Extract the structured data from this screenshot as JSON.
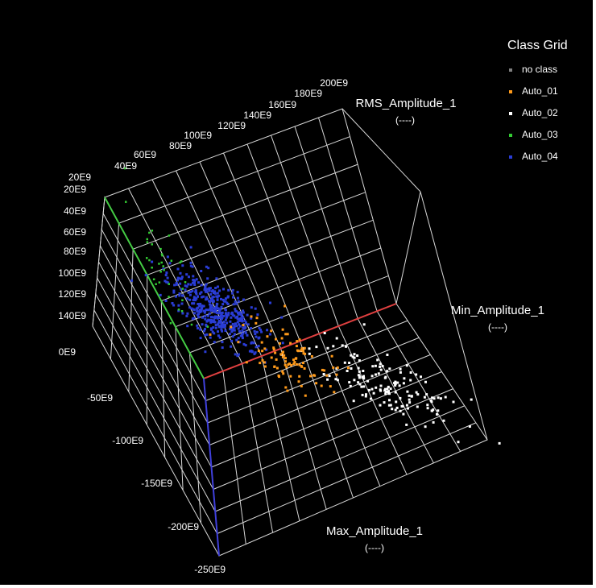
{
  "chart_data": {
    "type": "scatter",
    "title": "",
    "axes": {
      "rms": {
        "label": "RMS_Amplitude_1",
        "unit": "(----)",
        "ticks": [
          "20E9",
          "40E9",
          "60E9",
          "80E9",
          "100E9",
          "120E9",
          "140E9",
          "160E9",
          "180E9",
          "200E9"
        ],
        "range": [
          20,
          200
        ],
        "color": "#e04040"
      },
      "min": {
        "label": "Min_Amplitude_1",
        "unit": "(----)",
        "ticks": [
          "20E9",
          "40E9",
          "60E9",
          "80E9",
          "100E9",
          "120E9",
          "140E9"
        ],
        "range": [
          20,
          140
        ],
        "color": "#44cc44"
      },
      "max": {
        "label": "Max_Amplitude_1",
        "unit": "(----)",
        "ticks": [
          "0E9",
          "-50E9",
          "-100E9",
          "-150E9",
          "-200E9",
          "-250E9"
        ],
        "range": [
          0,
          -250
        ],
        "color": "#4040dd"
      }
    },
    "legend": {
      "title": "Class Grid",
      "position": "top-right",
      "entries": [
        {
          "label": "no class",
          "color": "#808080"
        },
        {
          "label": "Auto_01",
          "color": "#ff9a1a"
        },
        {
          "label": "Auto_02",
          "color": "#ffffff"
        },
        {
          "label": "Auto_03",
          "color": "#33cc33"
        },
        {
          "label": "Auto_04",
          "color": "#2a3dd6"
        }
      ]
    },
    "grid": true,
    "series": [
      {
        "class": "Auto_03",
        "color": "#33cc33",
        "count": 35,
        "approx_center_screen": [
          205,
          330
        ]
      },
      {
        "class": "Auto_04",
        "color": "#2a3dd6",
        "count": 420,
        "approx_center_screen": [
          268,
          385
        ]
      },
      {
        "class": "Auto_01",
        "color": "#ff9a1a",
        "count": 95,
        "approx_center_screen": [
          360,
          445
        ]
      },
      {
        "class": "Auto_02",
        "color": "#ffffff",
        "count": 150,
        "approx_center_screen": [
          478,
          478
        ]
      }
    ]
  }
}
